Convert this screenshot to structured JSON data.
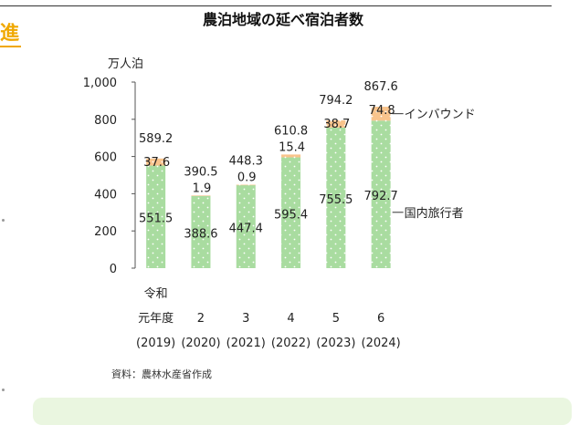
{
  "page": {
    "side_tag": "進",
    "source_note": "資料：農林水産省作成"
  },
  "chart_data": {
    "type": "bar",
    "stacked": true,
    "title": "農泊地域の延べ宿泊者数",
    "unit_label": "万人泊",
    "ylim": [
      0,
      1000
    ],
    "yticks": [
      0,
      200,
      400,
      600,
      800,
      1000
    ],
    "ytick_labels": [
      "0",
      "200",
      "400",
      "600",
      "800",
      "1,000"
    ],
    "categories": [
      {
        "line1": "令和",
        "line2": "元年度",
        "line3": "(2019)"
      },
      {
        "line1": "",
        "line2": "2",
        "line3": "(2020)"
      },
      {
        "line1": "",
        "line2": "3",
        "line3": "(2021)"
      },
      {
        "line1": "",
        "line2": "4",
        "line3": "(2022)"
      },
      {
        "line1": "",
        "line2": "5",
        "line3": "(2023)"
      },
      {
        "line1": "",
        "line2": "6",
        "line3": "(2024)"
      }
    ],
    "series": [
      {
        "name": "国内旅行者",
        "color": "#a9dca0",
        "values": [
          551.5,
          388.6,
          447.4,
          595.4,
          755.5,
          792.7
        ],
        "labels": [
          "551.5",
          "388.6",
          "447.4",
          "595.4",
          "755.5",
          "792.7"
        ]
      },
      {
        "name": "インバウンド",
        "color": "#f9c48c",
        "values": [
          37.6,
          1.9,
          0.9,
          15.4,
          38.7,
          74.8
        ],
        "labels": [
          "37.6",
          "1.9",
          "0.9",
          "15.4",
          "38.7",
          "74.8"
        ]
      }
    ],
    "totals": [
      589.2,
      390.5,
      448.3,
      610.8,
      794.2,
      867.6
    ],
    "total_labels": [
      "589.2",
      "390.5",
      "448.3",
      "610.8",
      "794.2",
      "867.6"
    ],
    "legend_placement": "right (inline labels)",
    "grid": false
  }
}
